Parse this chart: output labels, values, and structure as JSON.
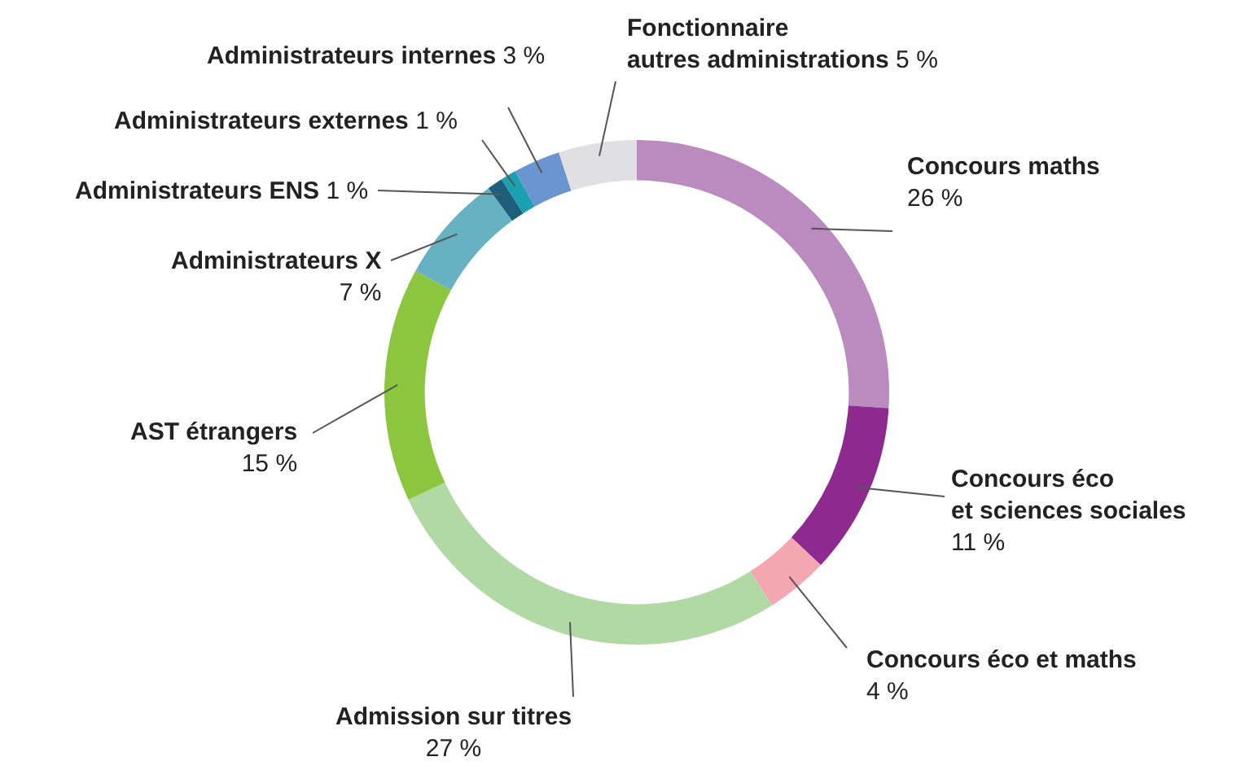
{
  "chart_data": {
    "type": "donut",
    "categories": [
      "Concours maths",
      "Concours éco\net sciences sociales",
      "Concours éco et maths",
      "Admission sur titres",
      "AST étrangers",
      "Administrateurs X",
      "Administrateurs ENS",
      "Administrateurs externes",
      "Administrateurs internes",
      "Fonctionnaire\nautres administrations"
    ],
    "values": [
      26,
      11,
      4,
      27,
      15,
      7,
      1,
      1,
      3,
      5
    ],
    "colors": [
      "#b98bbf",
      "#8e2a8f",
      "#f4a7b0",
      "#b1d9a3",
      "#8cc63f",
      "#66b2c2",
      "#1d5f7a",
      "#1aa0b0",
      "#6b95d0",
      "#e0e0e2"
    ],
    "value_labels": [
      "26 %",
      "11 %",
      "4 %",
      "27 %",
      "15 %",
      "7 %",
      "1 %",
      "1 %",
      "3 %",
      "5 %"
    ],
    "legend": false
  }
}
